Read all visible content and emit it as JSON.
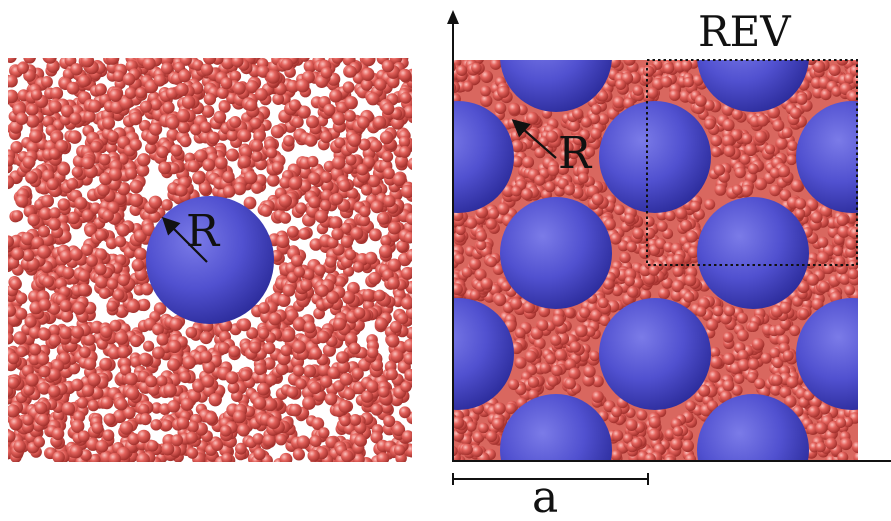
{
  "left_panel": {
    "radius_label": "R"
  },
  "right_panel": {
    "radius_label": "R",
    "rev_label": "REV",
    "spacing_label": "a"
  },
  "colors": {
    "particle": "#e05a55",
    "particle_dark": "#a8322f",
    "particle_light": "#f6a6a1",
    "inclusion": "#5757d6",
    "inclusion_dark": "#2d2da0",
    "inclusion_light": "#8f8ff0",
    "ink": "#111111"
  }
}
